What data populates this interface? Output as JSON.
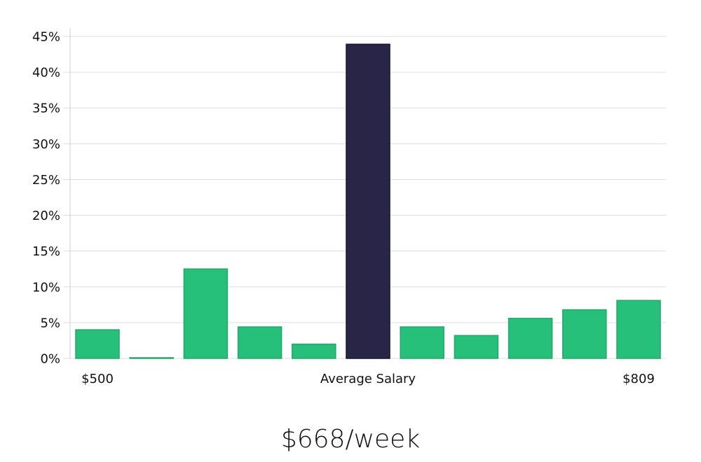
{
  "colors": {
    "bar": "#27c07a",
    "bar_stroke": "#21a869",
    "highlight": "#282546",
    "highlight_stroke": "#151233",
    "grid": "#dddddd",
    "axis": "#cccccc",
    "text": "#111111"
  },
  "headline": "$668/week",
  "chart_data": {
    "type": "bar",
    "title": "",
    "xlabel": "Average Salary",
    "ylabel": "",
    "x_min_label": "$500",
    "x_max_label": "$809",
    "values": [
      4.0,
      0.1,
      12.5,
      4.4,
      2.0,
      43.9,
      4.4,
      3.2,
      5.6,
      6.8,
      8.1
    ],
    "highlight_index": 5,
    "ylim": [
      0,
      45
    ],
    "yticks": [
      "0%",
      "5%",
      "10%",
      "15%",
      "20%",
      "25%",
      "30%",
      "35%",
      "40%",
      "45%"
    ],
    "grid": true
  }
}
